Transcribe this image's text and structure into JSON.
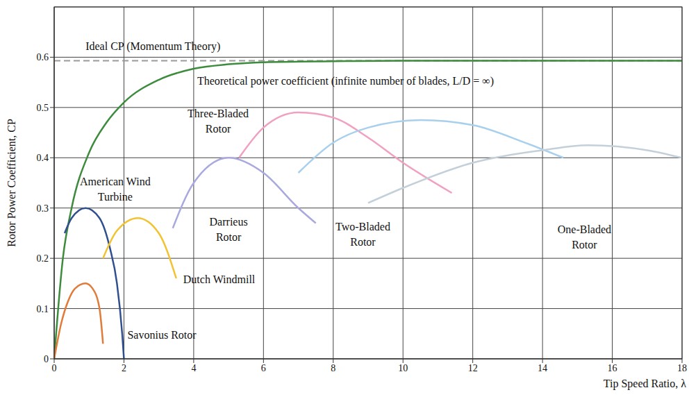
{
  "chart_data": {
    "type": "line",
    "xlabel": "Tip Speed Ratio, λ",
    "ylabel": "Rotor Power Coefficient, CP",
    "xlim": [
      0,
      18
    ],
    "xticks": [
      0,
      2,
      4,
      6,
      8,
      10,
      12,
      14,
      16,
      18
    ],
    "ylim": [
      0,
      0.7
    ],
    "yticks": [
      0,
      0.1,
      0.2,
      0.3,
      0.4,
      0.5,
      0.6
    ],
    "grid": true,
    "series": [
      {
        "name": "Ideal CP (Momentum Theory)",
        "color": "#9a9a9a",
        "line_style": "dashed",
        "x": [
          0,
          18
        ],
        "values": [
          0.593,
          0.593
        ]
      },
      {
        "name": "Theoretical power coefficient (infinite number of blades, L/D = ∞)",
        "color": "#3d8b3d",
        "line_style": "solid",
        "x": [
          0,
          0.25,
          0.5,
          1,
          1.5,
          2,
          3,
          4,
          5,
          6,
          8,
          10,
          18
        ],
        "values": [
          0,
          0.2,
          0.3,
          0.41,
          0.47,
          0.51,
          0.555,
          0.577,
          0.586,
          0.59,
          0.592,
          0.593,
          0.593
        ]
      },
      {
        "name": "Savonius Rotor",
        "color": "#e07b39",
        "line_style": "solid",
        "x": [
          0,
          0.2,
          0.4,
          0.6,
          0.9,
          1.1,
          1.3,
          1.4
        ],
        "values": [
          0,
          0.07,
          0.115,
          0.14,
          0.15,
          0.14,
          0.1,
          0.03
        ]
      },
      {
        "name": "American Wind Turbine",
        "color": "#2f4f8f",
        "line_style": "solid",
        "x": [
          0.3,
          0.5,
          0.9,
          1.3,
          1.6,
          1.8,
          1.95,
          2
        ],
        "values": [
          0.25,
          0.28,
          0.3,
          0.28,
          0.22,
          0.15,
          0.05,
          0
        ]
      },
      {
        "name": "Dutch Windmill",
        "color": "#f2c230",
        "line_style": "solid",
        "x": [
          1.4,
          1.8,
          2.4,
          3,
          3.5
        ],
        "values": [
          0.2,
          0.255,
          0.28,
          0.25,
          0.16
        ]
      },
      {
        "name": "Darrieus Rotor",
        "color": "#a9a9e0",
        "line_style": "solid",
        "x": [
          3.4,
          4,
          5,
          6,
          7,
          7.5
        ],
        "values": [
          0.26,
          0.35,
          0.4,
          0.37,
          0.3,
          0.27
        ]
      },
      {
        "name": "Three-Bladed Rotor",
        "color": "#f0a0c0",
        "line_style": "solid",
        "x": [
          5.3,
          6,
          7,
          8,
          9,
          10,
          11.4
        ],
        "values": [
          0.4,
          0.46,
          0.49,
          0.48,
          0.44,
          0.39,
          0.33
        ]
      },
      {
        "name": "Two-Bladed Rotor",
        "color": "#a8d0ec",
        "line_style": "solid",
        "x": [
          7,
          8,
          9,
          10.5,
          12,
          13.5,
          14.6
        ],
        "values": [
          0.37,
          0.43,
          0.46,
          0.475,
          0.465,
          0.43,
          0.4
        ]
      },
      {
        "name": "One-Bladed Rotor",
        "color": "#c3d0d9",
        "line_style": "solid",
        "x": [
          9,
          10,
          12,
          14,
          15.3,
          17,
          18
        ],
        "values": [
          0.31,
          0.34,
          0.39,
          0.415,
          0.425,
          0.415,
          0.4
        ]
      }
    ]
  }
}
